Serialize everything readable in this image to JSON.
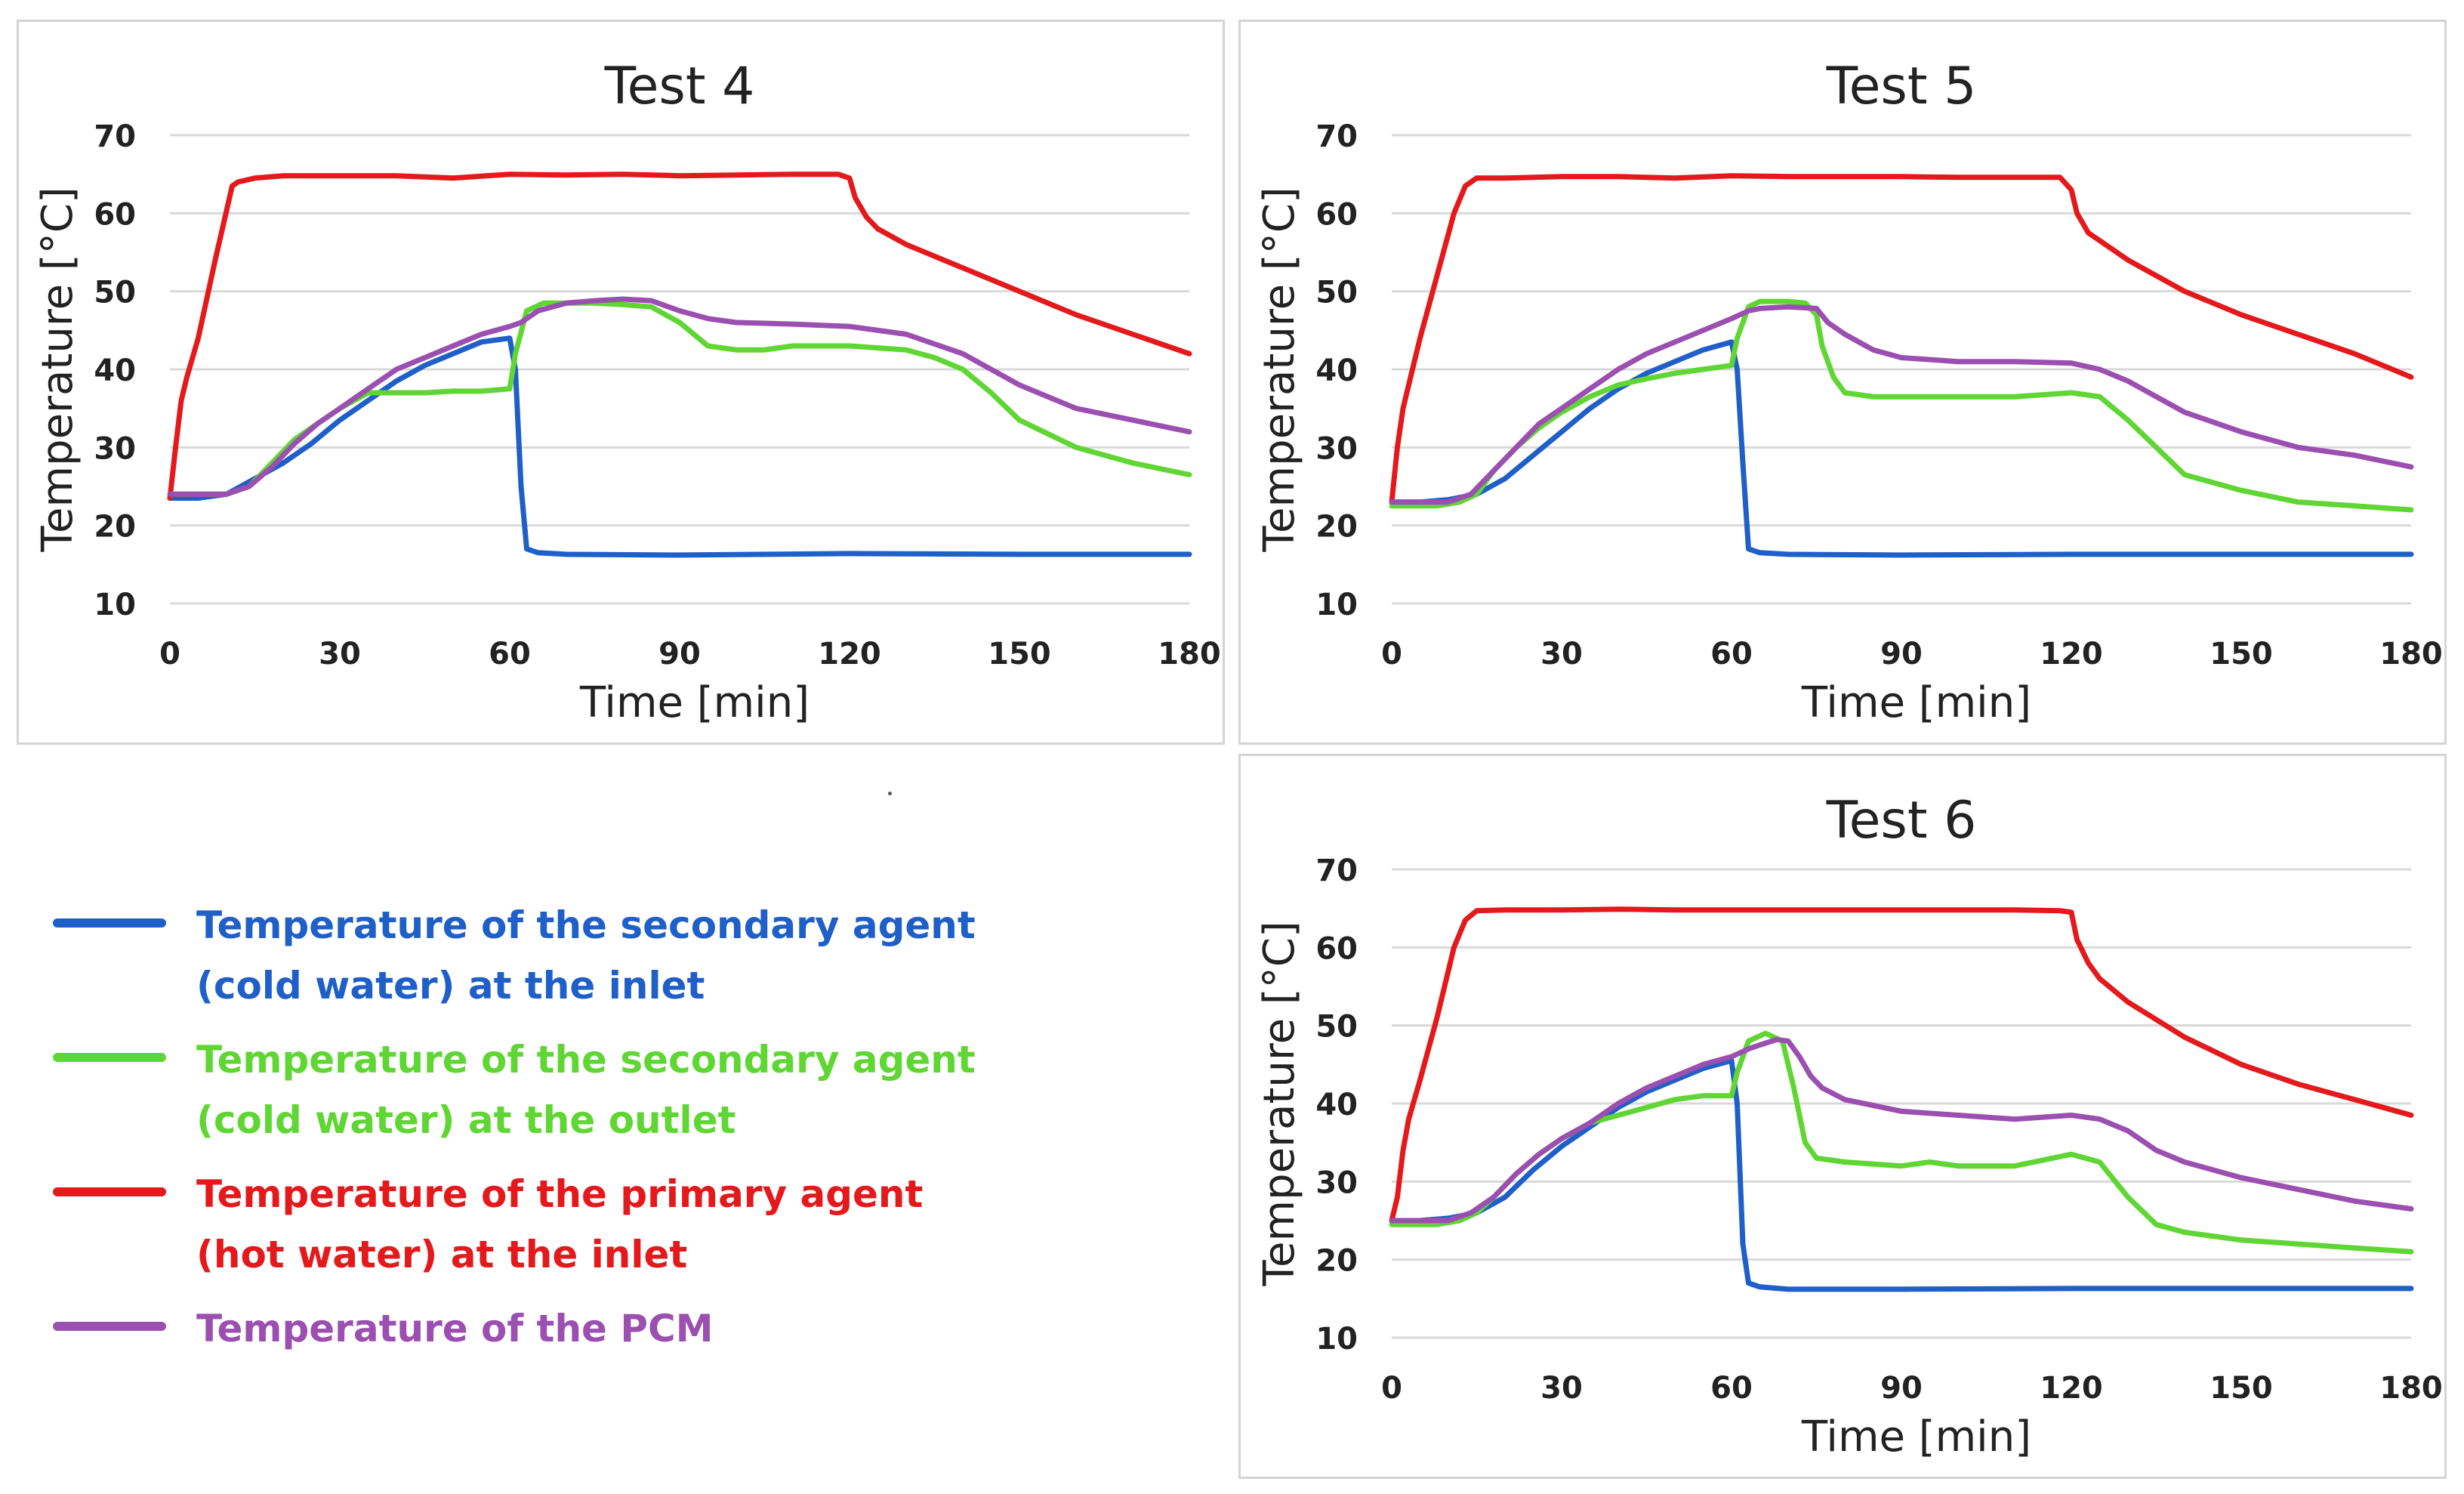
{
  "chart_data": [
    {
      "type": "line",
      "title": "Test 4",
      "xlabel": "Time [min]",
      "ylabel": "Temperature  [°C]",
      "xlim": [
        0,
        180
      ],
      "ylim": [
        10,
        70
      ],
      "xticks": [
        0,
        30,
        60,
        90,
        120,
        150,
        180
      ],
      "yticks": [
        10,
        20,
        30,
        40,
        50,
        60,
        70
      ],
      "grid": "horizontal",
      "series": [
        {
          "name": "Temperature of the secondary agent (cold water) at the inlet",
          "color": "#1f5fc8",
          "x": [
            0,
            5,
            10,
            15,
            20,
            25,
            30,
            35,
            40,
            45,
            50,
            55,
            60,
            61,
            62,
            63,
            65,
            70,
            90,
            120,
            150,
            180
          ],
          "y": [
            23.5,
            23.5,
            24,
            26,
            28,
            30.5,
            33.5,
            36,
            38.5,
            40.5,
            42,
            43.5,
            44,
            40,
            25,
            17,
            16.5,
            16.3,
            16.2,
            16.4,
            16.3,
            16.3
          ]
        },
        {
          "name": "Temperature of the secondary agent (cold water) at the outlet",
          "color": "#5fd633",
          "x": [
            0,
            5,
            10,
            14,
            18,
            22,
            26,
            30,
            35,
            40,
            45,
            50,
            55,
            60,
            61,
            63,
            66,
            70,
            75,
            80,
            85,
            90,
            95,
            100,
            105,
            110,
            120,
            130,
            135,
            140,
            145,
            150,
            160,
            170,
            180
          ],
          "y": [
            24,
            24,
            24,
            25,
            28,
            31,
            33,
            35,
            37,
            37,
            37,
            37.2,
            37.2,
            37.5,
            42,
            47.5,
            48.5,
            48.5,
            48.5,
            48.3,
            48,
            46,
            43,
            42.5,
            42.5,
            43,
            43,
            42.5,
            41.5,
            40,
            37,
            33.5,
            30,
            28,
            26.5
          ]
        },
        {
          "name": "Temperature of the primary agent (hot water) at the inlet",
          "color": "#e3191c",
          "x": [
            0,
            1,
            2,
            3,
            5,
            8,
            11,
            12,
            15,
            20,
            30,
            40,
            50,
            60,
            70,
            80,
            90,
            100,
            110,
            118,
            120,
            121,
            123,
            125,
            130,
            140,
            150,
            160,
            170,
            180
          ],
          "y": [
            23.5,
            30,
            36,
            39,
            44,
            54,
            63.5,
            64,
            64.5,
            64.8,
            64.8,
            64.8,
            64.5,
            65,
            64.9,
            65,
            64.8,
            64.9,
            65,
            65,
            64.5,
            62,
            59.5,
            58,
            56,
            53,
            50,
            47,
            44.5,
            42
          ]
        },
        {
          "name": "Temperature of the PCM",
          "color": "#9b4fb0",
          "x": [
            0,
            10,
            14,
            18,
            22,
            26,
            30,
            35,
            40,
            45,
            50,
            55,
            60,
            62,
            65,
            70,
            75,
            80,
            85,
            90,
            95,
            100,
            110,
            120,
            130,
            140,
            150,
            160,
            170,
            180
          ],
          "y": [
            24,
            24,
            25,
            27.5,
            30.5,
            33,
            35,
            37.5,
            40,
            41.5,
            43,
            44.5,
            45.5,
            46,
            47.5,
            48.5,
            48.8,
            49,
            48.8,
            47.5,
            46.5,
            46,
            45.8,
            45.5,
            44.5,
            42,
            38,
            35,
            33.5,
            32
          ]
        }
      ]
    },
    {
      "type": "line",
      "title": "Test 5",
      "xlabel": "Time [min]",
      "ylabel": "Temperature  [°C]",
      "xlim": [
        0,
        180
      ],
      "ylim": [
        10,
        70
      ],
      "xticks": [
        0,
        30,
        60,
        90,
        120,
        150,
        180
      ],
      "yticks": [
        10,
        20,
        30,
        40,
        50,
        60,
        70
      ],
      "grid": "horizontal",
      "series": [
        {
          "name": "Temperature of the secondary agent (cold water) at the inlet",
          "color": "#1f5fc8",
          "x": [
            0,
            5,
            10,
            15,
            20,
            25,
            30,
            35,
            40,
            45,
            50,
            55,
            60,
            61,
            62,
            63,
            65,
            70,
            90,
            120,
            150,
            180
          ],
          "y": [
            23,
            23,
            23.3,
            24,
            26,
            29,
            32,
            35,
            37.5,
            39.5,
            41,
            42.5,
            43.5,
            40,
            28,
            17,
            16.5,
            16.3,
            16.2,
            16.3,
            16.3,
            16.3
          ]
        },
        {
          "name": "Temperature of the secondary agent (cold water) at the outlet",
          "color": "#5fd633",
          "x": [
            0,
            8,
            12,
            15,
            18,
            22,
            26,
            30,
            35,
            40,
            45,
            50,
            55,
            60,
            61,
            63,
            65,
            70,
            73,
            75,
            76,
            78,
            80,
            85,
            90,
            100,
            110,
            120,
            125,
            130,
            135,
            140,
            150,
            160,
            170,
            180
          ],
          "y": [
            22.5,
            22.5,
            23,
            24,
            27,
            30,
            32.5,
            34.5,
            36.5,
            38,
            38.8,
            39.5,
            40,
            40.5,
            44,
            48,
            48.7,
            48.7,
            48.5,
            47,
            43,
            39,
            37,
            36.5,
            36.5,
            36.5,
            36.5,
            37,
            36.5,
            33.5,
            30,
            26.5,
            24.5,
            23,
            22.5,
            22
          ]
        },
        {
          "name": "Temperature of the primary agent (hot water) at the inlet",
          "color": "#e3191c",
          "x": [
            0,
            1,
            2,
            3,
            5,
            8,
            11,
            13,
            15,
            20,
            30,
            40,
            50,
            60,
            70,
            80,
            90,
            100,
            110,
            118,
            120,
            121,
            123,
            125,
            130,
            140,
            150,
            160,
            170,
            180
          ],
          "y": [
            23,
            30,
            35,
            38,
            44,
            52,
            60,
            63.5,
            64.5,
            64.5,
            64.7,
            64.7,
            64.5,
            64.8,
            64.7,
            64.7,
            64.7,
            64.6,
            64.6,
            64.6,
            63,
            60,
            57.5,
            56.5,
            54,
            50,
            47,
            44.5,
            42,
            39
          ]
        },
        {
          "name": "Temperature of the PCM",
          "color": "#9b4fb0",
          "x": [
            0,
            10,
            14,
            18,
            22,
            26,
            30,
            35,
            40,
            45,
            50,
            55,
            60,
            63,
            65,
            70,
            75,
            77,
            80,
            85,
            90,
            100,
            110,
            120,
            125,
            130,
            135,
            140,
            150,
            160,
            170,
            180
          ],
          "y": [
            23,
            23,
            24,
            27,
            30,
            33,
            35,
            37.5,
            40,
            42,
            43.5,
            45,
            46.5,
            47.5,
            47.8,
            48,
            47.8,
            46,
            44.5,
            42.5,
            41.5,
            41,
            41,
            40.8,
            40,
            38.5,
            36.5,
            34.5,
            32,
            30,
            29,
            27.5
          ]
        }
      ]
    },
    {
      "type": "line",
      "title": "Test 6",
      "xlabel": "Time [min]",
      "ylabel": "Temperature  [°C]",
      "xlim": [
        0,
        180
      ],
      "ylim": [
        10,
        70
      ],
      "xticks": [
        0,
        30,
        60,
        90,
        120,
        150,
        180
      ],
      "yticks": [
        10,
        20,
        30,
        40,
        50,
        60,
        70
      ],
      "grid": "horizontal",
      "series": [
        {
          "name": "Temperature of the secondary agent (cold water) at the inlet",
          "color": "#1f5fc8",
          "x": [
            0,
            5,
            10,
            15,
            20,
            25,
            30,
            35,
            40,
            45,
            50,
            55,
            60,
            61,
            62,
            63,
            65,
            70,
            90,
            120,
            150,
            180
          ],
          "y": [
            25,
            25,
            25.3,
            26,
            28,
            31.5,
            34.5,
            37,
            39.5,
            41.5,
            43,
            44.5,
            45.5,
            40,
            22,
            17,
            16.5,
            16.2,
            16.2,
            16.3,
            16.3,
            16.3
          ]
        },
        {
          "name": "Temperature of the secondary agent (cold water) at the outlet",
          "color": "#5fd633",
          "x": [
            0,
            8,
            12,
            15,
            18,
            22,
            26,
            30,
            35,
            40,
            45,
            50,
            55,
            60,
            61,
            63,
            66,
            69,
            71,
            73,
            75,
            80,
            90,
            95,
            100,
            110,
            120,
            125,
            130,
            135,
            140,
            150,
            160,
            170,
            180
          ],
          "y": [
            24.5,
            24.5,
            25,
            26,
            28,
            31,
            33.5,
            35.5,
            37.5,
            38.5,
            39.5,
            40.5,
            41,
            41,
            44,
            48,
            49,
            48,
            42,
            35,
            33,
            32.5,
            32,
            32.5,
            32,
            32,
            33.5,
            32.5,
            28,
            24.5,
            23.5,
            22.5,
            22,
            21.5,
            21
          ]
        },
        {
          "name": "Temperature of the primary agent (hot water) at the inlet",
          "color": "#e3191c",
          "x": [
            0,
            1,
            2,
            3,
            5,
            8,
            11,
            13,
            15,
            20,
            30,
            40,
            50,
            60,
            70,
            80,
            90,
            100,
            110,
            118,
            120,
            121,
            123,
            125,
            130,
            140,
            150,
            160,
            170,
            180
          ],
          "y": [
            25,
            28,
            34,
            38,
            43,
            51,
            60,
            63.5,
            64.7,
            64.8,
            64.8,
            64.9,
            64.8,
            64.8,
            64.8,
            64.8,
            64.8,
            64.8,
            64.8,
            64.7,
            64.5,
            61,
            58,
            56,
            53,
            48.5,
            45,
            42.5,
            40.5,
            38.5
          ]
        },
        {
          "name": "Temperature of the PCM",
          "color": "#9b4fb0",
          "x": [
            0,
            10,
            14,
            18,
            22,
            26,
            30,
            35,
            40,
            45,
            50,
            55,
            60,
            63,
            65,
            68,
            70,
            72,
            74,
            76,
            80,
            90,
            100,
            110,
            120,
            125,
            130,
            135,
            140,
            150,
            160,
            170,
            180
          ],
          "y": [
            25,
            25,
            26,
            28,
            31,
            33.5,
            35.5,
            37.5,
            40,
            42,
            43.5,
            45,
            46,
            47,
            47.5,
            48.2,
            48,
            46,
            43.5,
            42,
            40.5,
            39,
            38.5,
            38,
            38.5,
            38,
            36.5,
            34,
            32.5,
            30.5,
            29,
            27.5,
            26.5
          ]
        }
      ]
    }
  ],
  "legend": [
    {
      "label": "Temperature of the secondary agent\n(cold water) at the inlet",
      "color": "#1f5fc8"
    },
    {
      "label": "Temperature of the secondary agent\n(cold water) at the outlet",
      "color": "#5fd633"
    },
    {
      "label": "Temperature of the primary agent\n(hot water) at the inlet",
      "color": "#e3191c"
    },
    {
      "label": "Temperature of the PCM",
      "color": "#9b4fb0"
    }
  ]
}
